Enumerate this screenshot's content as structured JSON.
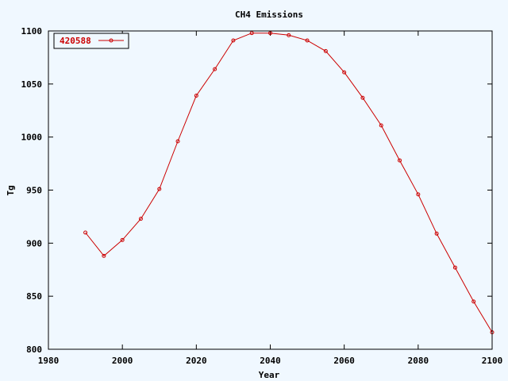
{
  "chart_data": {
    "type": "line",
    "title": "CH4 Emissions",
    "xlabel": "Year",
    "ylabel": "Tg",
    "xlim": [
      1980,
      2100
    ],
    "ylim": [
      800,
      1100
    ],
    "xticks": [
      1980,
      2000,
      2020,
      2040,
      2060,
      2080,
      2100
    ],
    "yticks": [
      800,
      850,
      900,
      950,
      1000,
      1050,
      1100
    ],
    "grid": false,
    "legend_position": "top-left",
    "series": [
      {
        "name": "420588",
        "color": "#cc0000",
        "x": [
          1990,
          1995,
          2000,
          2005,
          2010,
          2015,
          2020,
          2025,
          2030,
          2035,
          2040,
          2045,
          2050,
          2055,
          2060,
          2065,
          2070,
          2075,
          2080,
          2085,
          2090,
          2095,
          2100
        ],
        "y": [
          910,
          888,
          903,
          923,
          951,
          996,
          1039,
          1064,
          1091,
          1098,
          1098,
          1096,
          1091,
          1081,
          1061,
          1037,
          1011,
          978,
          946,
          909,
          877,
          845,
          816
        ]
      }
    ]
  }
}
